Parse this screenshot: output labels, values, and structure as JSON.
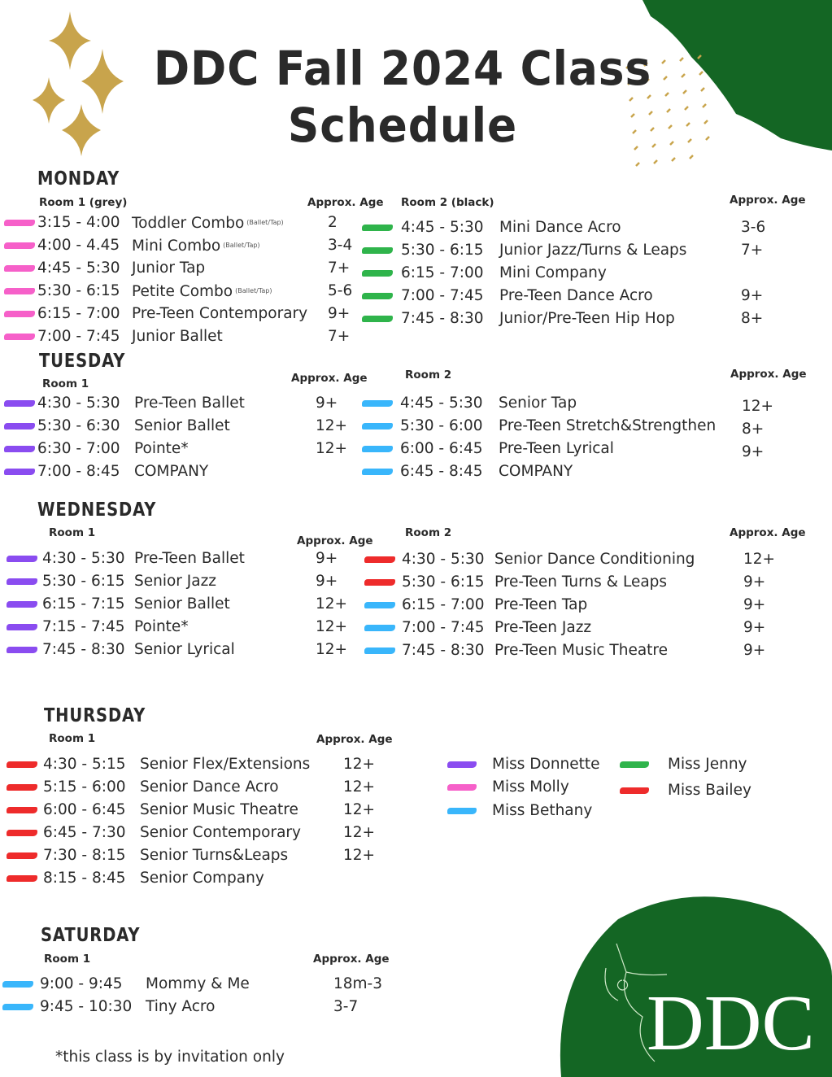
{
  "colors": {
    "pink": "#f660c9",
    "green": "#2fb44b",
    "purple": "#8a4cf0",
    "blue": "#39b6fb",
    "red": "#ee2b2b",
    "brand_green": "#146624",
    "gold": "#c8a44c"
  },
  "header": {
    "title_line1": "DDC Fall 2024 Class",
    "title_line2": "Schedule"
  },
  "approx_label": "Approx. Age",
  "sections": [
    {
      "day": "MONDAY",
      "left": {
        "room": "Room 1 (grey)",
        "color": "pink",
        "rows": [
          {
            "time": "3:15 - 4:00",
            "class": "Toddler Combo",
            "note": "(Ballet/Tap)",
            "age": "2"
          },
          {
            "time": "4:00 - 4.45",
            "class": "Mini Combo",
            "note": "(Ballet/Tap)",
            "age": "3-4"
          },
          {
            "time": "4:45 - 5:30",
            "class": "Junior Tap",
            "age": "7+"
          },
          {
            "time": "5:30 - 6:15",
            "class": "Petite Combo",
            "note": "(Ballet/Tap)",
            "age": "5-6"
          },
          {
            "time": "6:15 - 7:00",
            "class": "Pre-Teen Contemporary",
            "age": "9+"
          },
          {
            "time": "7:00 - 7:45",
            "class": "Junior Ballet",
            "age": "7+"
          }
        ]
      },
      "right": {
        "room": "Room 2 (black)",
        "color": "green",
        "rows": [
          {
            "time": "4:45 - 5:30",
            "class": "Mini Dance Acro",
            "age": "3-6"
          },
          {
            "time": "5:30 - 6:15",
            "class": "Junior Jazz/Turns & Leaps",
            "age": "7+"
          },
          {
            "time": "6:15 - 7:00",
            "class": "Mini Company",
            "age": ""
          },
          {
            "time": "7:00 - 7:45",
            "class": "Pre-Teen Dance Acro",
            "age": "9+"
          },
          {
            "time": "7:45 - 8:30",
            "class": "Junior/Pre-Teen Hip Hop",
            "age": "8+"
          }
        ]
      }
    },
    {
      "day": "TUESDAY",
      "left": {
        "room": "Room 1",
        "color": "purple",
        "rows": [
          {
            "time": "4:30 - 5:30",
            "class": "Pre-Teen Ballet",
            "age": "9+"
          },
          {
            "time": "5:30 - 6:30",
            "class": "Senior Ballet",
            "age": "12+"
          },
          {
            "time": "6:30 - 7:00",
            "class": "Pointe*",
            "age": "12+"
          },
          {
            "time": "7:00 - 8:45",
            "class": "COMPANY",
            "age": ""
          }
        ]
      },
      "right": {
        "room": "Room 2",
        "color": "blue",
        "rows": [
          {
            "time": "4:45 - 5:30",
            "class": "Senior Tap",
            "age": "12+"
          },
          {
            "time": "5:30 - 6:00",
            "class": "Pre-Teen Stretch&Strengthen",
            "age": "8+"
          },
          {
            "time": "6:00 - 6:45",
            "class": "Pre-Teen Lyrical",
            "age": "9+"
          },
          {
            "time": "6:45 - 8:45",
            "class": "COMPANY",
            "age": ""
          }
        ]
      }
    },
    {
      "day": "WEDNESDAY",
      "left": {
        "room": "Room 1",
        "color": "purple",
        "rows": [
          {
            "time": "4:30 - 5:30",
            "class": "Pre-Teen Ballet",
            "age": "9+"
          },
          {
            "time": "5:30 - 6:15",
            "class": "Senior Jazz",
            "age": "9+"
          },
          {
            "time": "6:15 - 7:15",
            "class": "Senior Ballet",
            "age": "12+"
          },
          {
            "time": "7:15 - 7:45",
            "class": "Pointe*",
            "age": "12+"
          },
          {
            "time": "7:45 - 8:30",
            "class": "Senior Lyrical",
            "age": "12+"
          }
        ]
      },
      "right": {
        "room": "Room 2",
        "rows": [
          {
            "time": "4:30 - 5:30",
            "class": "Senior Dance Conditioning",
            "age": "12+",
            "color": "red"
          },
          {
            "time": "5:30 - 6:15",
            "class": "Pre-Teen Turns & Leaps",
            "age": "9+",
            "color": "red"
          },
          {
            "time": "6:15 - 7:00",
            "class": "Pre-Teen Tap",
            "age": "9+",
            "color": "blue"
          },
          {
            "time": "7:00 - 7:45",
            "class": "Pre-Teen Jazz",
            "age": "9+",
            "color": "blue"
          },
          {
            "time": "7:45 - 8:30",
            "class": "Pre-Teen Music Theatre",
            "age": "9+",
            "color": "blue"
          }
        ]
      }
    },
    {
      "day": "THURSDAY",
      "left": {
        "room": "Room 1",
        "color": "red",
        "rows": [
          {
            "time": "4:30 - 5:15",
            "class": "Senior Flex/Extensions",
            "age": "12+"
          },
          {
            "time": "5:15 - 6:00",
            "class": "Senior Dance Acro",
            "age": "12+"
          },
          {
            "time": "6:00 - 6:45",
            "class": "Senior Music Theatre",
            "age": "12+"
          },
          {
            "time": "6:45 - 7:30",
            "class": "Senior Contemporary",
            "age": "12+"
          },
          {
            "time": "7:30 - 8:15",
            "class": "Senior Turns&Leaps",
            "age": "12+"
          },
          {
            "time": "8:15 - 8:45",
            "class": "Senior Company",
            "age": ""
          }
        ]
      }
    },
    {
      "day": "SATURDAY",
      "left": {
        "room": "Room 1",
        "color": "blue",
        "rows": [
          {
            "time": "9:00 - 9:45",
            "class": "Mommy & Me",
            "age": "18m-3"
          },
          {
            "time": "9:45 - 10:30",
            "class": "Tiny Acro",
            "age": "3-7"
          }
        ]
      }
    }
  ],
  "legend": [
    {
      "name": "Miss Donnette",
      "color": "purple"
    },
    {
      "name": "Miss Molly",
      "color": "pink"
    },
    {
      "name": "Miss Bethany",
      "color": "blue"
    },
    {
      "name": "Miss Jenny",
      "color": "green"
    },
    {
      "name": "Miss Bailey",
      "color": "red"
    }
  ],
  "footnote": "*this class is by invitation only",
  "logo": {
    "text": "DDC"
  }
}
